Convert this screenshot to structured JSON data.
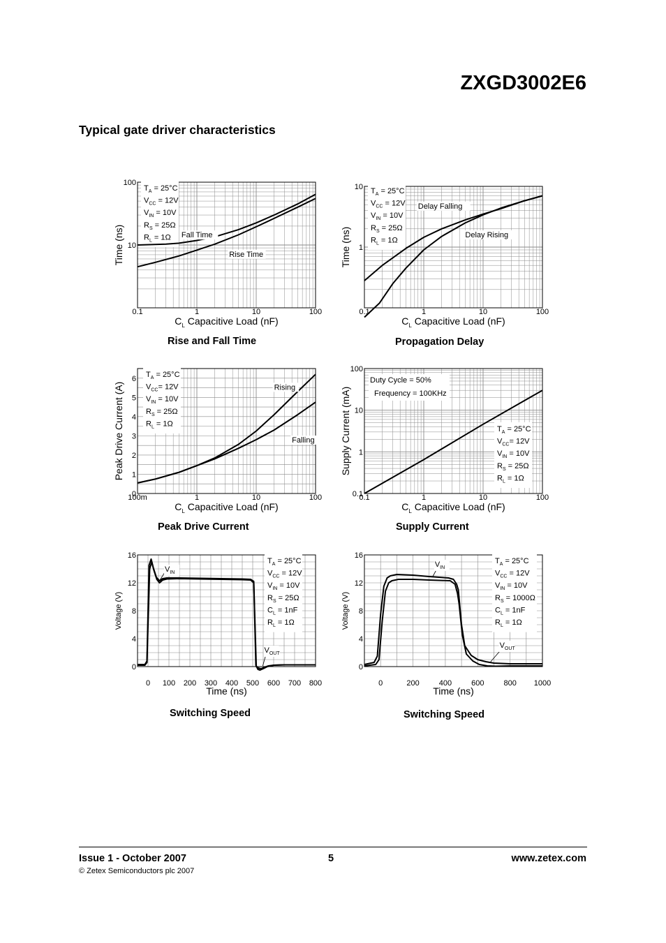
{
  "header": {
    "part_number": "ZXGD3002E6"
  },
  "section_title": "Typical gate driver characteristics",
  "footer": {
    "issue": "Issue 1 - October 2007",
    "page_number": "5",
    "url": "www.zetex.com",
    "copyright": "© Zetex Semiconductors plc 2007"
  },
  "chart_data": [
    {
      "id": "rise-fall",
      "type": "line",
      "caption": "Rise and Fall Time",
      "xlabel_main": "C",
      "xlabel_sub": "L",
      "xlabel_rest": " Capacitive Load (nF)",
      "ylabel": "Time (ns)",
      "xscale": "log",
      "yscale": "log",
      "xlim": [
        0.1,
        100
      ],
      "ylim": [
        1,
        100
      ],
      "xticks": [
        {
          "v": 0.1,
          "label": "0.1"
        },
        {
          "v": 1,
          "label": "1"
        },
        {
          "v": 10,
          "label": "10"
        },
        {
          "v": 100,
          "label": "100"
        }
      ],
      "yticks": [
        {
          "v": 10,
          "label": "10"
        },
        {
          "v": 100,
          "label": "100"
        }
      ],
      "grid": true,
      "conditions": [
        {
          "main": "T",
          "sub": "A",
          "rest": " = 25°C"
        },
        {
          "main": "V",
          "sub": "CC",
          "rest": " = 12V"
        },
        {
          "main": "V",
          "sub": "IN",
          "rest": " = 10V"
        },
        {
          "main": "R",
          "sub": "S",
          "rest": " = 25Ω"
        },
        {
          "main": "R",
          "sub": "L",
          "rest": " = 1Ω"
        }
      ],
      "series": [
        {
          "name": "Fall Time",
          "label_at": [
            0.55,
            13.2
          ],
          "x": [
            0.1,
            0.3,
            0.5,
            1,
            2,
            5,
            10,
            20,
            50,
            100
          ],
          "y": [
            10,
            10.3,
            10.7,
            11.8,
            13.5,
            17.5,
            22.5,
            30,
            45,
            64
          ]
        },
        {
          "name": "Rise Time",
          "label_at": [
            3.5,
            6.5
          ],
          "x": [
            0.1,
            0.2,
            0.5,
            1,
            2,
            5,
            10,
            20,
            50,
            100
          ],
          "y": [
            4.5,
            5.3,
            6.7,
            8.3,
            10.3,
            14.5,
            19.5,
            26.5,
            40,
            55
          ]
        }
      ]
    },
    {
      "id": "prop-delay",
      "type": "line",
      "caption": "Propagation Delay",
      "xlabel_main": "C",
      "xlabel_sub": "L",
      "xlabel_rest": " Capacitive Load (nF)",
      "ylabel": "Time (ns)",
      "xscale": "log",
      "yscale": "log",
      "xlim": [
        0.1,
        100
      ],
      "ylim": [
        0.1,
        10
      ],
      "xticks": [
        {
          "v": 0.1,
          "label": "0.1"
        },
        {
          "v": 1,
          "label": "1"
        },
        {
          "v": 10,
          "label": "10"
        },
        {
          "v": 100,
          "label": "100"
        }
      ],
      "yticks": [
        {
          "v": 1,
          "label": "1"
        },
        {
          "v": 10,
          "label": "10"
        }
      ],
      "grid": true,
      "conditions": [
        {
          "main": "T",
          "sub": "A",
          "rest": " = 25°C"
        },
        {
          "main": "V",
          "sub": "CC",
          "rest": " = 12V"
        },
        {
          "main": "V",
          "sub": "IN",
          "rest": " = 10V"
        },
        {
          "main": "R",
          "sub": "S",
          "rest": " = 25Ω"
        },
        {
          "main": "R",
          "sub": "L",
          "rest": " = 1Ω"
        }
      ],
      "series": [
        {
          "name": "Delay Falling",
          "label_at": [
            0.8,
            4.3
          ],
          "x": [
            0.1,
            0.2,
            0.5,
            1,
            2,
            5,
            10,
            20,
            50,
            100
          ],
          "y": [
            0.28,
            0.5,
            0.95,
            1.45,
            2.0,
            2.8,
            3.5,
            4.3,
            5.8,
            7.0
          ]
        },
        {
          "name": "Delay Rising",
          "label_at": [
            5.0,
            1.45
          ],
          "x": [
            0.1,
            0.18,
            0.3,
            0.5,
            1,
            2,
            5,
            10,
            20,
            50,
            100
          ],
          "y": [
            0.07,
            0.12,
            0.25,
            0.45,
            0.9,
            1.5,
            2.5,
            3.4,
            4.4,
            5.8,
            7.0
          ]
        }
      ]
    },
    {
      "id": "peak-drive",
      "type": "line",
      "caption": "Peak Drive Current",
      "xlabel_main": "C",
      "xlabel_sub": "L",
      "xlabel_rest": " Capacitive Load (nF)",
      "ylabel": "Peak Drive Current (A)",
      "xscale": "log",
      "yscale": "linear",
      "xlim": [
        0.1,
        100
      ],
      "ylim": [
        0,
        6.5
      ],
      "xticks": [
        {
          "v": 0.1,
          "label": "100m"
        },
        {
          "v": 1,
          "label": "1"
        },
        {
          "v": 10,
          "label": "10"
        },
        {
          "v": 100,
          "label": "100"
        }
      ],
      "yticks": [
        {
          "v": 0,
          "label": "0"
        },
        {
          "v": 1,
          "label": "1"
        },
        {
          "v": 2,
          "label": "2"
        },
        {
          "v": 3,
          "label": "3"
        },
        {
          "v": 4,
          "label": "4"
        },
        {
          "v": 5,
          "label": "5"
        },
        {
          "v": 6,
          "label": "6"
        }
      ],
      "grid": true,
      "conditions": [
        {
          "main": "T",
          "sub": "A",
          "rest": " = 25°C"
        },
        {
          "main": "V",
          "sub": "CC",
          "rest": "= 12V"
        },
        {
          "main": "V",
          "sub": "IN",
          "rest": " = 10V"
        },
        {
          "main": "R",
          "sub": "S",
          "rest": " = 25Ω"
        },
        {
          "main": "R",
          "sub": "L",
          "rest": " = 1Ω"
        }
      ],
      "series": [
        {
          "name": "Rising",
          "label_at": [
            20,
            5.4
          ],
          "x": [
            0.1,
            0.2,
            0.5,
            1,
            2,
            5,
            10,
            20,
            50,
            100
          ],
          "y": [
            0.55,
            0.75,
            1.1,
            1.45,
            1.85,
            2.55,
            3.25,
            4.1,
            5.3,
            6.2
          ]
        },
        {
          "name": "Falling",
          "label_at": [
            40,
            2.65
          ],
          "x": [
            0.1,
            0.2,
            0.5,
            1,
            2,
            5,
            10,
            20,
            50,
            100
          ],
          "y": [
            0.55,
            0.75,
            1.1,
            1.45,
            1.8,
            2.35,
            2.8,
            3.3,
            4.1,
            4.75
          ]
        }
      ]
    },
    {
      "id": "supply-current",
      "type": "line",
      "caption": "Supply Current",
      "xlabel_main": "C",
      "xlabel_sub": "L",
      "xlabel_rest": " Capacitive Load (nF)",
      "ylabel": "Supply Current (mA)",
      "xscale": "log",
      "yscale": "log",
      "xlim": [
        0.1,
        100
      ],
      "ylim": [
        0.1,
        100
      ],
      "xticks": [
        {
          "v": 0.1,
          "label": "0.1"
        },
        {
          "v": 1,
          "label": "1"
        },
        {
          "v": 10,
          "label": "10"
        },
        {
          "v": 100,
          "label": "100"
        }
      ],
      "yticks": [
        {
          "v": 0.1,
          "label": "0.1"
        },
        {
          "v": 1,
          "label": "1"
        },
        {
          "v": 10,
          "label": "10"
        },
        {
          "v": 100,
          "label": "100"
        }
      ],
      "grid": true,
      "notes": [
        "Duty Cycle = 50%",
        "Frequency = 100KHz"
      ],
      "conditions": [
        {
          "main": "T",
          "sub": "A",
          "rest": " = 25°C"
        },
        {
          "main": "V",
          "sub": "CC",
          "rest": "= 12V"
        },
        {
          "main": "V",
          "sub": "IN",
          "rest": " = 10V"
        },
        {
          "main": "R",
          "sub": "S",
          "rest": " = 25Ω"
        },
        {
          "main": "R",
          "sub": "L",
          "rest": " = 1Ω"
        }
      ],
      "series": [
        {
          "x": [
            0.1,
            1,
            10,
            100
          ],
          "y": [
            0.1,
            0.65,
            4.6,
            30
          ]
        }
      ]
    },
    {
      "id": "switching-1",
      "type": "line",
      "caption": "Switching Speed",
      "xlabel_main": "Time (ns)",
      "xlabel_sub": "",
      "xlabel_rest": "",
      "ylabel": "Voltage (V)",
      "xscale": "linear",
      "yscale": "linear",
      "xlim": [
        -50,
        800
      ],
      "ylim": [
        0,
        16
      ],
      "xticks": [
        {
          "v": 0,
          "label": "0"
        },
        {
          "v": 100,
          "label": "100"
        },
        {
          "v": 200,
          "label": "200"
        },
        {
          "v": 300,
          "label": "300"
        },
        {
          "v": 400,
          "label": "400"
        },
        {
          "v": 500,
          "label": "500"
        },
        {
          "v": 600,
          "label": "600"
        },
        {
          "v": 700,
          "label": "700"
        },
        {
          "v": 800,
          "label": "800"
        }
      ],
      "yticks": [
        {
          "v": 0,
          "label": "0"
        },
        {
          "v": 4,
          "label": "4"
        },
        {
          "v": 8,
          "label": "8"
        },
        {
          "v": 12,
          "label": "12"
        },
        {
          "v": 16,
          "label": "16"
        }
      ],
      "grid": true,
      "conditions": [
        {
          "main": "T",
          "sub": "A",
          "rest": " = 25°C"
        },
        {
          "main": "V",
          "sub": "CC",
          "rest": " = 12V"
        },
        {
          "main": "V",
          "sub": "IN",
          "rest": " = 10V"
        },
        {
          "main": "R",
          "sub": "S",
          "rest": " = 25Ω"
        },
        {
          "main": "C",
          "sub": "L",
          "rest": " = 1nF"
        },
        {
          "main": "R",
          "sub": "L",
          "rest": " = 1Ω"
        }
      ],
      "annotations": [
        {
          "main": "V",
          "sub": "IN",
          "x": 80,
          "y": 13.6,
          "ptr": [
            [
              78,
              13.4
            ],
            [
              55,
              12.3
            ]
          ]
        },
        {
          "main": "V",
          "sub": "OUT",
          "x": 555,
          "y": 2.0,
          "ptr": [
            [
              562,
              1.6
            ],
            [
              548,
              0.1
            ]
          ]
        }
      ],
      "series": [
        {
          "name": "VIN",
          "x": [
            -50,
            -15,
            -5,
            5,
            15,
            25,
            40,
            55,
            70,
            90,
            150,
            250,
            350,
            450,
            490,
            505,
            515,
            525,
            535,
            550,
            570,
            600,
            650,
            800
          ],
          "y": [
            0.3,
            0.3,
            0.8,
            14.5,
            15.4,
            14.2,
            12.8,
            12.3,
            12.6,
            12.7,
            12.7,
            12.65,
            12.6,
            12.55,
            12.5,
            12.2,
            0.2,
            -0.4,
            -0.5,
            -0.3,
            0.0,
            0.2,
            0.25,
            0.25
          ]
        },
        {
          "name": "VOUT",
          "x": [
            -50,
            -15,
            -5,
            8,
            18,
            28,
            42,
            55,
            70,
            90,
            150,
            250,
            350,
            450,
            490,
            505,
            517,
            527,
            540,
            555,
            575,
            600,
            650,
            800
          ],
          "y": [
            0.2,
            0.2,
            0.6,
            14.0,
            15.0,
            13.8,
            12.5,
            12.0,
            12.4,
            12.55,
            12.6,
            12.55,
            12.5,
            12.45,
            12.4,
            12.0,
            0.0,
            -0.2,
            -0.3,
            -0.1,
            0.1,
            0.2,
            0.25,
            0.25
          ]
        }
      ]
    },
    {
      "id": "switching-2",
      "type": "line",
      "caption": "Switching Speed",
      "xlabel_main": "Time (ns)",
      "xlabel_sub": "",
      "xlabel_rest": "",
      "ylabel": "Voltage (V)",
      "xscale": "linear",
      "yscale": "linear",
      "xlim": [
        -100,
        1000
      ],
      "ylim": [
        0,
        16
      ],
      "xticks": [
        {
          "v": 0,
          "label": "0"
        },
        {
          "v": 200,
          "label": "200"
        },
        {
          "v": 400,
          "label": "400"
        },
        {
          "v": 600,
          "label": "600"
        },
        {
          "v": 800,
          "label": "800"
        },
        {
          "v": 1000,
          "label": "1000"
        }
      ],
      "yticks": [
        {
          "v": 0,
          "label": "0"
        },
        {
          "v": 4,
          "label": "4"
        },
        {
          "v": 8,
          "label": "8"
        },
        {
          "v": 12,
          "label": "12"
        },
        {
          "v": 16,
          "label": "16"
        }
      ],
      "grid": true,
      "conditions": [
        {
          "main": "T",
          "sub": "A",
          "rest": " = 25°C"
        },
        {
          "main": "V",
          "sub": "CC",
          "rest": " = 12V"
        },
        {
          "main": "V",
          "sub": "IN",
          "rest": " = 10V"
        },
        {
          "main": "R",
          "sub": "S",
          "rest": " = 1000Ω"
        },
        {
          "main": "C",
          "sub": "L",
          "rest": " = 1nF"
        },
        {
          "main": "R",
          "sub": "L",
          "rest": " = 1Ω"
        }
      ],
      "annotations": [
        {
          "main": "V",
          "sub": "IN",
          "x": 335,
          "y": 14.3,
          "ptr": [
            [
              350,
              14.1
            ],
            [
              320,
              12.8
            ]
          ]
        },
        {
          "main": "V",
          "sub": "OUT",
          "x": 735,
          "y": 2.7,
          "ptr": [
            [
              740,
              2.3
            ],
            [
              680,
              0.7
            ]
          ]
        }
      ],
      "series": [
        {
          "name": "VIN",
          "x": [
            -100,
            -40,
            -20,
            0,
            20,
            40,
            60,
            100,
            200,
            300,
            420,
            450,
            470,
            480,
            500,
            520,
            560,
            600,
            650,
            700,
            800,
            1000
          ],
          "y": [
            0.3,
            0.6,
            1.5,
            7.5,
            11.5,
            12.7,
            13.0,
            13.2,
            13.1,
            12.9,
            12.7,
            12.5,
            11.8,
            11.0,
            6.0,
            3.0,
            1.6,
            1.0,
            0.7,
            0.5,
            0.4,
            0.4
          ]
        },
        {
          "name": "VOUT",
          "x": [
            -100,
            -30,
            -10,
            10,
            30,
            50,
            70,
            110,
            200,
            300,
            430,
            460,
            475,
            485,
            505,
            530,
            570,
            610,
            660,
            710,
            800,
            1000
          ],
          "y": [
            0.1,
            0.3,
            1.0,
            6.5,
            10.8,
            12.0,
            12.3,
            12.5,
            12.5,
            12.4,
            12.3,
            11.8,
            10.5,
            9.0,
            4.5,
            1.8,
            0.8,
            0.3,
            0.1,
            0.05,
            0.1,
            0.1
          ]
        }
      ]
    }
  ]
}
